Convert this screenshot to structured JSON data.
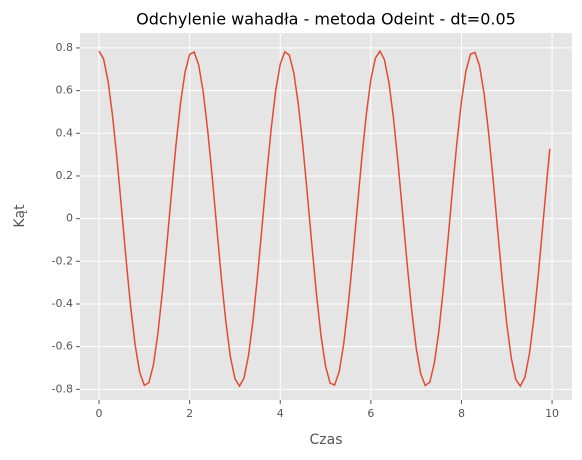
{
  "chart_data": {
    "type": "line",
    "title": "Odchylenie wahadła - metoda Odeint - dt=0.05",
    "xlabel": "Czas",
    "ylabel": "Kąt",
    "x": [
      0,
      0.1,
      0.2,
      0.3,
      0.4,
      0.5,
      0.6,
      0.7,
      0.8,
      0.9,
      1,
      1.1,
      1.2,
      1.3,
      1.4,
      1.5,
      1.6,
      1.7,
      1.8,
      1.9,
      2,
      2.1,
      2.2,
      2.3,
      2.4,
      2.5,
      2.6,
      2.7,
      2.8,
      2.9,
      3,
      3.1,
      3.2,
      3.3,
      3.4,
      3.5,
      3.6,
      3.7,
      3.8,
      3.9,
      4,
      4.1,
      4.2,
      4.3,
      4.4,
      4.5,
      4.6,
      4.7,
      4.8,
      4.9,
      5,
      5.1,
      5.2,
      5.3,
      5.4,
      5.5,
      5.6,
      5.7,
      5.8,
      5.9,
      6,
      6.1,
      6.2,
      6.3,
      6.4,
      6.5,
      6.6,
      6.7,
      6.8,
      6.9,
      7,
      7.1,
      7.2,
      7.3,
      7.4,
      7.5,
      7.6,
      7.7,
      7.8,
      7.9,
      8,
      8.1,
      8.2,
      8.3,
      8.4,
      8.5,
      8.6,
      8.7,
      8.8,
      8.9,
      9,
      9.1,
      9.2,
      9.3,
      9.4,
      9.5,
      9.6,
      9.7,
      9.8,
      9.9,
      9.95
    ],
    "series": [
      {
        "color": "#e24a33",
        "values": [
          0.785,
          0.749,
          0.644,
          0.479,
          0.272,
          0.039,
          -0.198,
          -0.417,
          -0.597,
          -0.722,
          -0.781,
          -0.769,
          -0.686,
          -0.537,
          -0.34,
          -0.116,
          0.122,
          0.348,
          0.543,
          0.688,
          0.77,
          0.781,
          0.72,
          0.593,
          0.411,
          0.192,
          -0.045,
          -0.278,
          -0.484,
          -0.648,
          -0.75,
          -0.785,
          -0.747,
          -0.641,
          -0.475,
          -0.265,
          -0.033,
          0.203,
          0.421,
          0.601,
          0.724,
          0.782,
          0.767,
          0.682,
          0.535,
          0.338,
          0.11,
          -0.128,
          -0.354,
          -0.549,
          -0.691,
          -0.771,
          -0.78,
          -0.718,
          -0.589,
          -0.406,
          -0.187,
          0.051,
          0.283,
          0.489,
          0.652,
          0.752,
          0.785,
          0.745,
          0.637,
          0.47,
          0.261,
          0.027,
          -0.209,
          -0.427,
          -0.605,
          -0.727,
          -0.782,
          -0.767,
          -0.679,
          -0.529,
          -0.329,
          -0.105,
          0.134,
          0.358,
          0.551,
          0.693,
          0.771,
          0.779,
          0.715,
          0.585,
          0.401,
          0.181,
          -0.056,
          -0.289,
          -0.493,
          -0.654,
          -0.754,
          -0.785,
          -0.744,
          -0.634,
          -0.465,
          -0.254,
          -0.021,
          0.215,
          0.327
        ]
      }
    ],
    "xlim": [
      -0.42,
      10.44
    ],
    "ylim": [
      -0.85,
      0.87
    ],
    "xticks": [
      0,
      2,
      4,
      6,
      8,
      10
    ],
    "yticks": [
      -0.8,
      -0.6,
      -0.4,
      -0.2,
      0.0,
      0.2,
      0.4,
      0.6,
      0.8
    ],
    "grid": true
  }
}
